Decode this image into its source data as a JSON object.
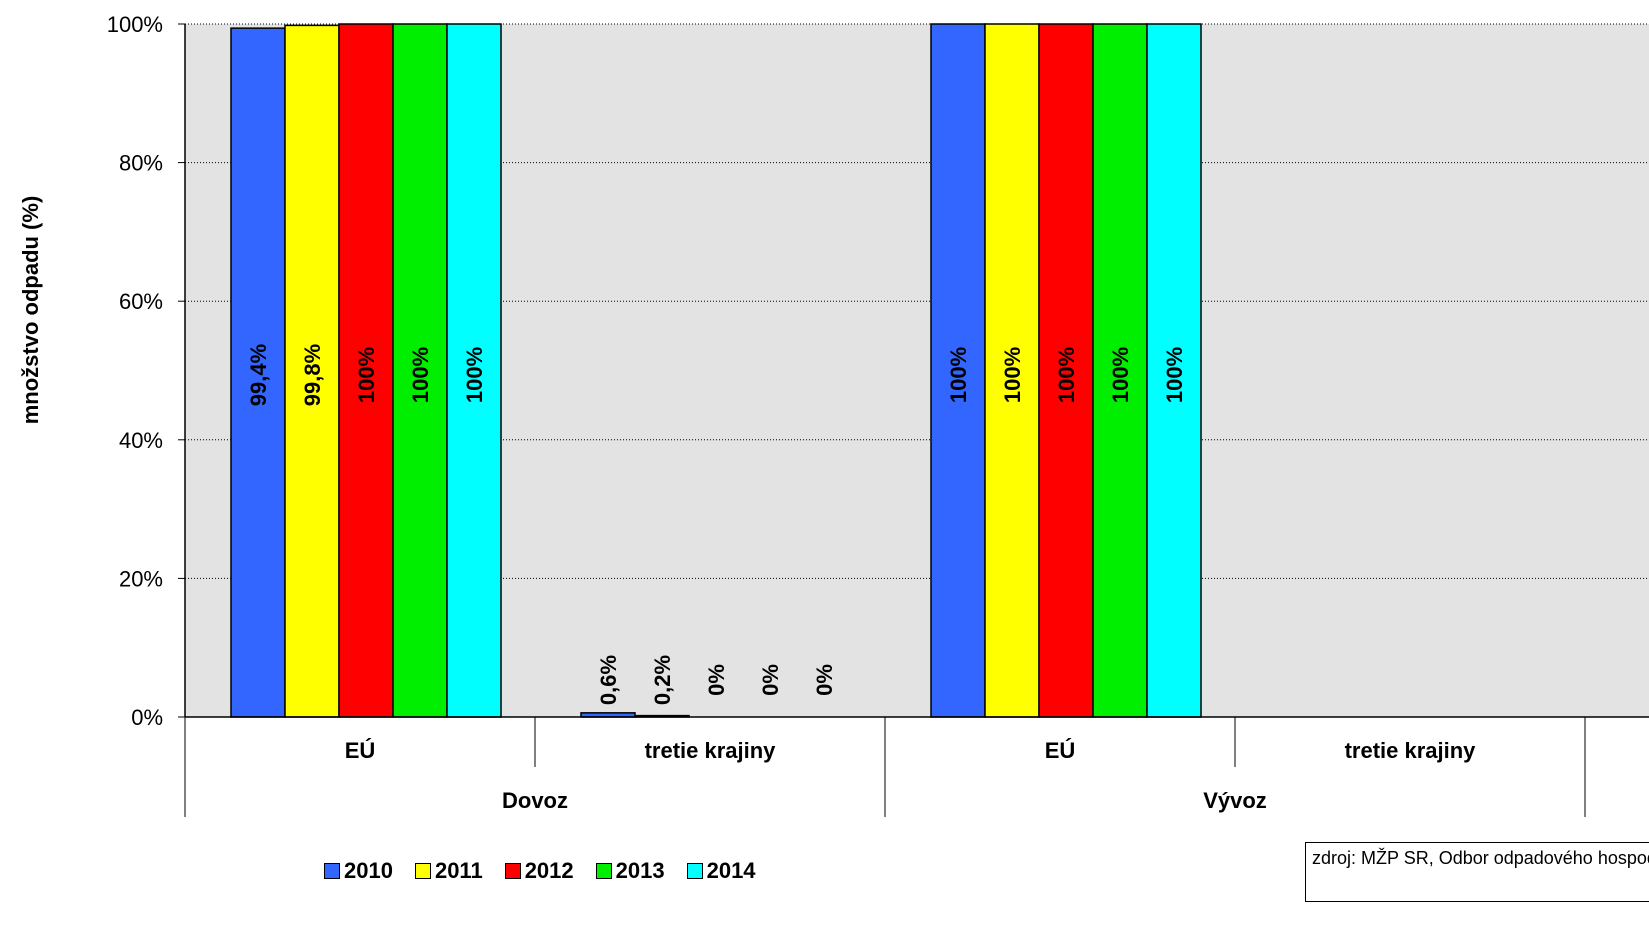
{
  "chart_data": {
    "type": "bar",
    "groups": [
      {
        "label": "Dovoz",
        "categories": [
          "EÚ",
          "tretie krajiny"
        ]
      },
      {
        "label": "Vývoz",
        "categories": [
          "EÚ",
          "tretie krajiny"
        ]
      }
    ],
    "categories": [
      "Dovoz – EÚ",
      "Dovoz – tretie krajiny",
      "Vývoz – EÚ",
      "Vývoz – tretie krajiny"
    ],
    "category_labels": [
      "EÚ",
      "tretie krajiny",
      "EÚ",
      "tretie krajiny"
    ],
    "series": [
      {
        "name": "2010",
        "color": "#3366FF",
        "values": [
          99.4,
          0.6,
          100,
          null
        ],
        "labels": [
          "99,4%",
          "0,6%",
          "100%",
          ""
        ]
      },
      {
        "name": "2011",
        "color": "#FFFF00",
        "values": [
          99.8,
          0.2,
          100,
          null
        ],
        "labels": [
          "99,8%",
          "0,2%",
          "100%",
          ""
        ]
      },
      {
        "name": "2012",
        "color": "#FF0000",
        "values": [
          100,
          0,
          100,
          null
        ],
        "labels": [
          "100%",
          "0%",
          "100%",
          ""
        ]
      },
      {
        "name": "2013",
        "color": "#00EE00",
        "values": [
          100,
          0,
          100,
          null
        ],
        "labels": [
          "100%",
          "0%",
          "100%",
          ""
        ]
      },
      {
        "name": "2014",
        "color": "#00FFFF",
        "values": [
          100,
          0,
          100,
          null
        ],
        "labels": [
          "100%",
          "0%",
          "100%",
          ""
        ]
      }
    ],
    "ylabel": "množstvo odpadu (%)",
    "yticks": [
      "0%",
      "20%",
      "40%",
      "60%",
      "80%",
      "100%"
    ],
    "ylim": [
      0,
      100
    ],
    "grid": true,
    "legend_position": "bottom",
    "plot_background": "#E3E3E3"
  },
  "source_note": "zdroj: MŽP SR, Odbor odpadového hospodárstva, Bratislava"
}
